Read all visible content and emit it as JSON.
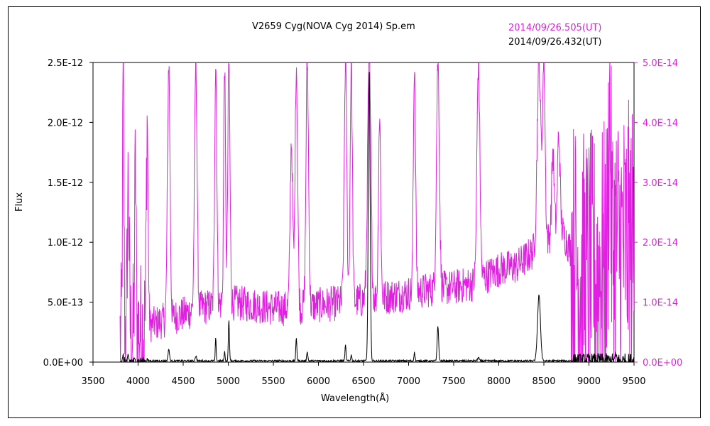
{
  "chart_data": {
    "type": "line",
    "title": "V2659 Cyg(NOVA Cyg 2014) Sp.em",
    "xlabel": "Wavelength(Å)",
    "ylabel": "Flux",
    "xlim": [
      3500,
      9500
    ],
    "ylim_left": [
      0,
      2.5e-12
    ],
    "ylim_right": [
      0,
      5e-14
    ],
    "x_ticks": [
      "3500",
      "4000",
      "4500",
      "5000",
      "5500",
      "6000",
      "6500",
      "7000",
      "7500",
      "8000",
      "8500",
      "9000",
      "9500"
    ],
    "y_ticks_left": [
      "0.0E+00",
      "5.0E-13",
      "1.0E-12",
      "1.5E-12",
      "2.0E-12",
      "2.5E-12"
    ],
    "y_ticks_right": [
      "0.0E+00",
      "1.0E-14",
      "2.0E-14",
      "3.0E-14",
      "4.0E-14",
      "5.0E-14"
    ],
    "grid": false,
    "legend_position": "top-right",
    "series": [
      {
        "name": "2014/09/26.505(UT)",
        "axis": "right",
        "color": "#e020e0",
        "continuum": [
          [
            3800,
            4e-15
          ],
          [
            3950,
            5e-15
          ],
          [
            4100,
            6e-15
          ],
          [
            4300,
            7e-15
          ],
          [
            4500,
            8e-15
          ],
          [
            4700,
            9e-15
          ],
          [
            5000,
            1e-14
          ],
          [
            5300,
            9.5e-15
          ],
          [
            5500,
            9e-15
          ],
          [
            5800,
            9e-15
          ],
          [
            6000,
            9.5e-15
          ],
          [
            6300,
            1e-14
          ],
          [
            6600,
            1.05e-14
          ],
          [
            7000,
            1.15e-14
          ],
          [
            7200,
            1.2e-14
          ],
          [
            7500,
            1.25e-14
          ],
          [
            7700,
            1.3e-14
          ],
          [
            8000,
            1.55e-14
          ],
          [
            8200,
            1.6e-14
          ],
          [
            8500,
            2e-14
          ],
          [
            8700,
            2.2e-14
          ],
          [
            8900,
            1.5e-14
          ],
          [
            9100,
            1.5e-14
          ],
          [
            9300,
            2e-14
          ],
          [
            9500,
            2e-14
          ]
        ],
        "lines": [
          [
            3835,
            4.6e-14,
            8
          ],
          [
            3890,
            3e-14,
            10
          ],
          [
            3970,
            3.2e-14,
            8
          ],
          [
            4101,
            4.1e-14,
            10
          ],
          [
            4340,
            5e-14,
            14
          ],
          [
            4640,
            5e-14,
            14
          ],
          [
            4861,
            5e-14,
            12
          ],
          [
            4959,
            5e-14,
            10
          ],
          [
            5007,
            5e-14,
            12
          ],
          [
            5700,
            3.7e-14,
            14
          ],
          [
            5755,
            5e-14,
            14
          ],
          [
            5876,
            5e-14,
            14
          ],
          [
            6300,
            5e-14,
            14
          ],
          [
            6364,
            5e-14,
            12
          ],
          [
            6563,
            5e-14,
            18
          ],
          [
            6678,
            4.1e-14,
            12
          ],
          [
            7065,
            5e-14,
            12
          ],
          [
            7325,
            5e-14,
            16
          ],
          [
            7774,
            5e-14,
            16
          ],
          [
            8446,
            5e-14,
            20
          ],
          [
            8500,
            5e-14,
            14
          ],
          [
            8600,
            3.5e-14,
            14
          ],
          [
            8665,
            3.8e-14,
            14
          ],
          [
            9229,
            4.2e-14,
            12
          ]
        ],
        "noise": 3e-15
      },
      {
        "name": "2014/09/26.432(UT)",
        "axis": "left",
        "color": "#000000",
        "continuum": [
          [
            3800,
            1e-14
          ],
          [
            9500,
            1e-14
          ]
        ],
        "lines": [
          [
            3835,
            5e-14,
            4
          ],
          [
            3890,
            4e-14,
            4
          ],
          [
            4101,
            3e-14,
            4
          ],
          [
            4340,
            1.1e-13,
            8
          ],
          [
            4640,
            5e-14,
            8
          ],
          [
            4861,
            2e-13,
            5
          ],
          [
            4959,
            9e-14,
            5
          ],
          [
            5007,
            3.5e-13,
            6
          ],
          [
            5755,
            2e-13,
            6
          ],
          [
            5876,
            9e-14,
            6
          ],
          [
            6300,
            1.4e-13,
            6
          ],
          [
            6364,
            6e-14,
            6
          ],
          [
            6563,
            2.43e-12,
            10
          ],
          [
            7065,
            8e-14,
            6
          ],
          [
            7325,
            3e-13,
            8
          ],
          [
            7774,
            4e-14,
            8
          ],
          [
            8446,
            5.6e-13,
            16
          ],
          [
            9300,
            5e-14,
            8
          ]
        ],
        "noise": 8e-15
      }
    ]
  }
}
